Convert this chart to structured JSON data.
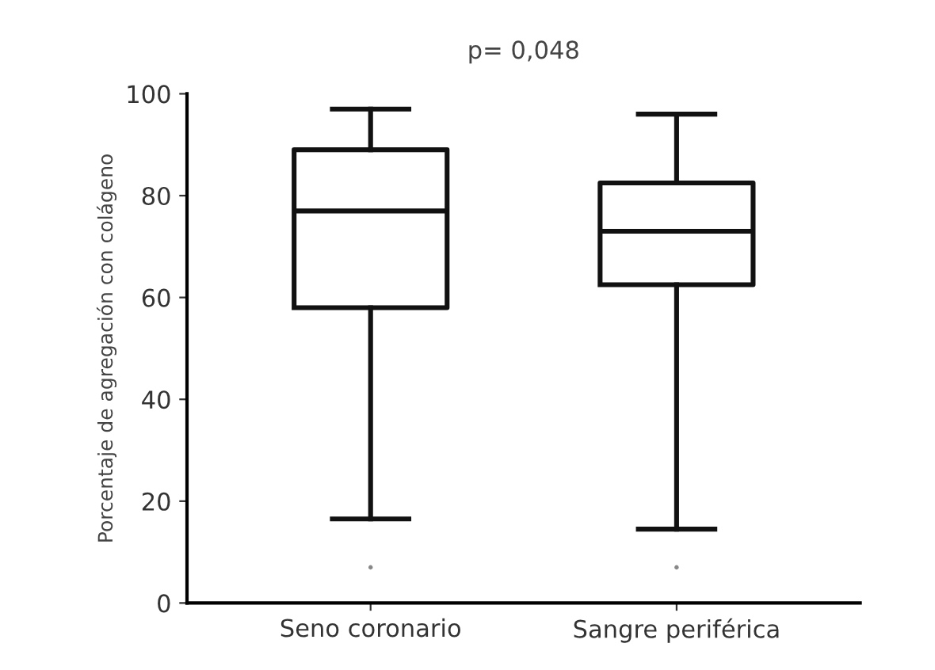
{
  "chart_data": {
    "type": "box",
    "title": "p= 0,048",
    "ylabel": "Porcentaje de agregación con colágeno",
    "categories": [
      "Seno coronario",
      "Sangre periférica"
    ],
    "boxes": [
      {
        "low": 16.5,
        "q1": 58,
        "median": 77,
        "q3": 89,
        "high": 97,
        "outliers": [
          7
        ]
      },
      {
        "low": 14.5,
        "q1": 62.5,
        "median": 73,
        "q3": 82.5,
        "high": 96,
        "outliers": [
          7
        ]
      }
    ],
    "color": "#111111",
    "ylim": [
      0,
      100
    ],
    "yticks": [
      0,
      20,
      40,
      60,
      80,
      100
    ],
    "grid": false
  }
}
